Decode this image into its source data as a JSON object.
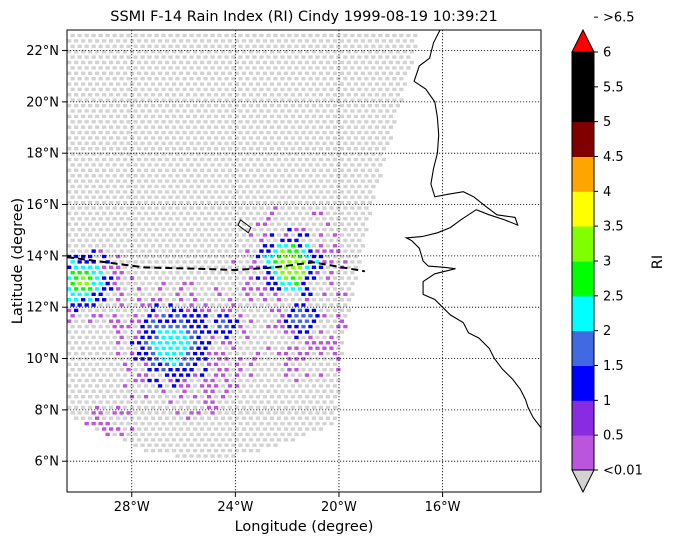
{
  "chart_data": {
    "type": "heatmap",
    "title": "SSMI F-14 Rain Index (RI) Cindy 1999-08-19 10:39:21",
    "xlabel": "Longitude (degree)",
    "ylabel": "Latitude (degree)",
    "xlim": [
      -30.5,
      -12.2
    ],
    "ylim": [
      4.8,
      22.8
    ],
    "x_ticks": [
      -28,
      -24,
      -20,
      -16
    ],
    "x_tick_labels": [
      "28°W",
      "24°W",
      "20°W",
      "16°W"
    ],
    "y_ticks": [
      6,
      8,
      10,
      12,
      14,
      16,
      18,
      20,
      22
    ],
    "y_tick_labels": [
      "6°N",
      "8°N",
      "10°N",
      "12°N",
      "14°N",
      "16°N",
      "18°N",
      "20°N",
      "22°N"
    ],
    "grid": true,
    "colorbar": {
      "label": "RI",
      "ticks": [
        "<0.01",
        "0.5",
        "1",
        "1.5",
        "2",
        "2.5",
        "3",
        "3.5",
        "4",
        "4.5",
        "5",
        "5.5",
        "6",
        ">6.5"
      ],
      "colors": [
        "#bb55dd",
        "#8a2be2",
        "#0000ff",
        "#4169e1",
        "#00ffff",
        "#00ff00",
        "#7fff00",
        "#ffff00",
        "#ffa500",
        "#800000",
        "#000000",
        "#000000"
      ],
      "under_color": "#d3d3d3",
      "over_color": "#ff0000"
    },
    "swath_edge": [
      [
        -20.4,
        4.8
      ],
      [
        -19.9,
        11.0
      ],
      [
        -18.8,
        16.0
      ],
      [
        -17.7,
        20.0
      ],
      [
        -16.9,
        22.8
      ]
    ],
    "swath_bottom": [
      [
        -30.5,
        7.8
      ],
      [
        -27.5,
        6.4
      ],
      [
        -25.0,
        6.1
      ],
      [
        -22.5,
        6.6
      ],
      [
        -20.0,
        7.6
      ]
    ],
    "track": [
      [
        -30.5,
        13.95
      ],
      [
        -29.0,
        13.75
      ],
      [
        -27.5,
        13.55
      ],
      [
        -25.5,
        13.5
      ],
      [
        -24.0,
        13.45
      ],
      [
        -22.5,
        13.55
      ],
      [
        -21.0,
        13.75
      ],
      [
        -19.0,
        13.4
      ]
    ],
    "rain_cells": [
      {
        "lon": -22.0,
        "lat": 13.7,
        "ri": [
          1.0,
          2.0,
          2.5,
          3.0
        ],
        "radius": [
          1.4,
          1.1,
          0.8,
          0.65
        ]
      },
      {
        "lon": -30.0,
        "lat": 13.1,
        "ri": [
          1.0,
          2.0,
          2.5,
          3.0
        ],
        "radius": [
          1.3,
          0.9,
          0.6,
          0.3
        ]
      },
      {
        "lon": -26.5,
        "lat": 10.6,
        "ri": [
          1.0,
          1.5,
          2.0
        ],
        "radius": [
          1.7,
          1.2,
          0.8
        ]
      },
      {
        "lon": -21.5,
        "lat": 11.6,
        "ri": [
          1.0,
          1.5
        ],
        "radius": [
          0.8,
          0.4
        ]
      },
      {
        "lon": -24.5,
        "lat": 11.4,
        "ri": [
          1.0,
          1.5
        ],
        "radius": [
          0.6,
          0.3
        ]
      }
    ],
    "light_rain_areas": [
      {
        "lon": -22.0,
        "lat": 13.9,
        "radius": 2.2
      },
      {
        "lon": -29.6,
        "lat": 12.8,
        "radius": 1.9
      },
      {
        "lon": -26.0,
        "lat": 10.4,
        "radius": 2.8
      },
      {
        "lon": -21.0,
        "lat": 11.0,
        "radius": 2.0
      },
      {
        "lon": -29.0,
        "lat": 7.6,
        "radius": 1.0
      },
      {
        "lon": -26.5,
        "lat": 8.6,
        "radius": 0.8
      },
      {
        "lon": -25.0,
        "lat": 9.0,
        "radius": 1.0
      }
    ],
    "coastline": [
      [
        -16.1,
        22.8
      ],
      [
        -16.35,
        22.3
      ],
      [
        -16.5,
        21.7
      ],
      [
        -16.9,
        21.4
      ],
      [
        -17.1,
        20.8
      ],
      [
        -16.65,
        20.5
      ],
      [
        -16.3,
        20.0
      ],
      [
        -16.2,
        19.4
      ],
      [
        -16.15,
        18.7
      ],
      [
        -16.2,
        18.0
      ],
      [
        -16.35,
        17.4
      ],
      [
        -16.45,
        16.8
      ],
      [
        -16.3,
        16.3
      ],
      [
        -15.8,
        16.4
      ],
      [
        -15.2,
        16.5
      ],
      [
        -14.8,
        16.3
      ],
      [
        -14.3,
        15.9
      ],
      [
        -13.9,
        15.6
      ],
      [
        -13.2,
        15.5
      ],
      [
        -13.1,
        15.2
      ],
      [
        -13.6,
        15.4
      ],
      [
        -14.2,
        15.6
      ],
      [
        -14.7,
        15.8
      ],
      [
        -15.3,
        15.4
      ],
      [
        -15.7,
        15.1
      ],
      [
        -16.2,
        14.9
      ],
      [
        -16.8,
        14.75
      ],
      [
        -17.4,
        14.7
      ],
      [
        -17.2,
        14.6
      ],
      [
        -16.9,
        14.3
      ],
      [
        -16.75,
        13.8
      ],
      [
        -16.55,
        13.6
      ],
      [
        -15.9,
        13.55
      ],
      [
        -15.5,
        13.5
      ],
      [
        -16.3,
        13.3
      ],
      [
        -16.75,
        13.0
      ],
      [
        -16.75,
        12.5
      ],
      [
        -16.3,
        12.3
      ],
      [
        -16.0,
        12.0
      ],
      [
        -15.7,
        11.7
      ],
      [
        -15.2,
        11.4
      ],
      [
        -15.0,
        11.0
      ],
      [
        -14.6,
        10.8
      ],
      [
        -14.2,
        10.4
      ],
      [
        -14.0,
        10.0
      ],
      [
        -13.7,
        9.6
      ],
      [
        -13.3,
        9.2
      ],
      [
        -13.0,
        8.8
      ],
      [
        -12.8,
        8.4
      ],
      [
        -12.7,
        8.1
      ],
      [
        -12.5,
        7.7
      ],
      [
        -12.2,
        7.3
      ]
    ],
    "island": [
      [
        -23.8,
        15.4
      ],
      [
        -23.4,
        15.1
      ],
      [
        -23.5,
        14.9
      ],
      [
        -23.9,
        15.2
      ],
      [
        -23.8,
        15.4
      ]
    ]
  }
}
